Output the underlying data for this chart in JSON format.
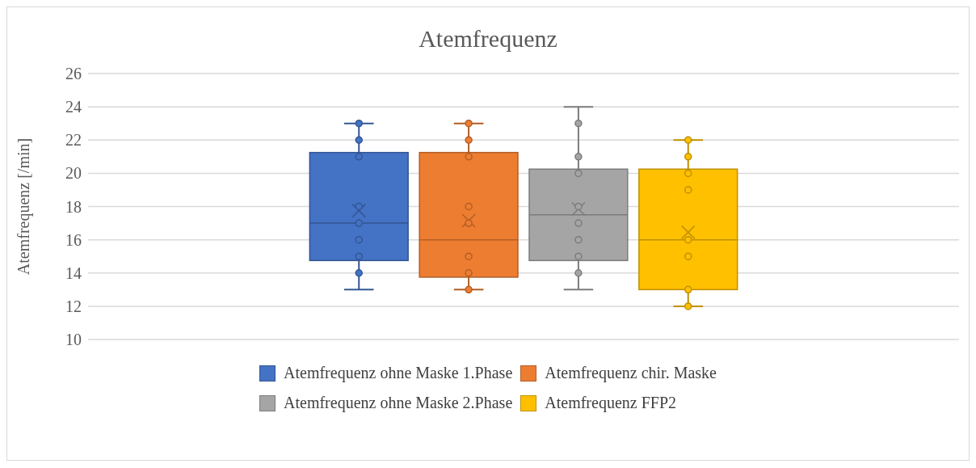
{
  "chart_data": {
    "type": "box",
    "title": "Atemfrequenz",
    "ylabel": "Atemfrequenz [/min]",
    "categories": [
      null
    ],
    "ylim": [
      10,
      26
    ],
    "yticks": [
      10,
      12,
      14,
      16,
      18,
      20,
      22,
      24,
      26
    ],
    "grid": "y",
    "legend": "bottom",
    "marker": "circle",
    "series": [
      {
        "name": "Atemfrequenz ohne Maske 1.Phase",
        "color": "#4472c4",
        "boxes": [
          {
            "low": 13,
            "q1": 14.75,
            "median": 17,
            "q3": 21.25,
            "high": 23,
            "mean": 17.75
          }
        ]
      },
      {
        "name": "Atemfrequenz chir. Maske",
        "color": "#ed7d31",
        "boxes": [
          {
            "low": 13,
            "q1": 13.75,
            "median": 16,
            "q3": 21.25,
            "high": 23,
            "mean": 17.15
          }
        ]
      },
      {
        "name": "Atemfrequenz ohne Maske 2.Phase",
        "color": "#a5a5a5",
        "boxes": [
          {
            "low": 13,
            "q1": 14.75,
            "median": 17.5,
            "q3": 20.25,
            "high": 24,
            "mean": 17.85
          }
        ]
      },
      {
        "name": "Atemfrequenz FFP2",
        "color": "#ffc000",
        "boxes": [
          {
            "low": 12,
            "q1": 13,
            "median": 16,
            "q3": 20.25,
            "high": 22,
            "mean": 16.45
          }
        ]
      },
      {
        "type": "scatter",
        "color": "#4472c4",
        "x": [
          null,
          null,
          null,
          null,
          null,
          null,
          null,
          null
        ],
        "values": [
          23,
          22,
          21,
          18,
          17,
          16,
          15,
          14
        ]
      },
      {
        "type": "scatter",
        "color": "#ed7d31",
        "x": [
          null,
          null,
          null,
          null,
          null,
          null,
          null,
          null
        ],
        "values": [
          23,
          22,
          21,
          18,
          17,
          15,
          14,
          13
        ]
      },
      {
        "type": "scatter",
        "color": "#a5a5a5",
        "x": [
          null,
          null,
          null,
          null,
          null,
          null,
          null,
          null
        ],
        "values": [
          23,
          21,
          20,
          18,
          17,
          16,
          15,
          14
        ]
      },
      {
        "type": "scatter",
        "color": "#ffc000",
        "x": [
          null,
          null,
          null,
          null,
          null,
          null,
          null,
          null
        ],
        "values": [
          22,
          21,
          20,
          19,
          16,
          15,
          13,
          12
        ]
      }
    ]
  }
}
